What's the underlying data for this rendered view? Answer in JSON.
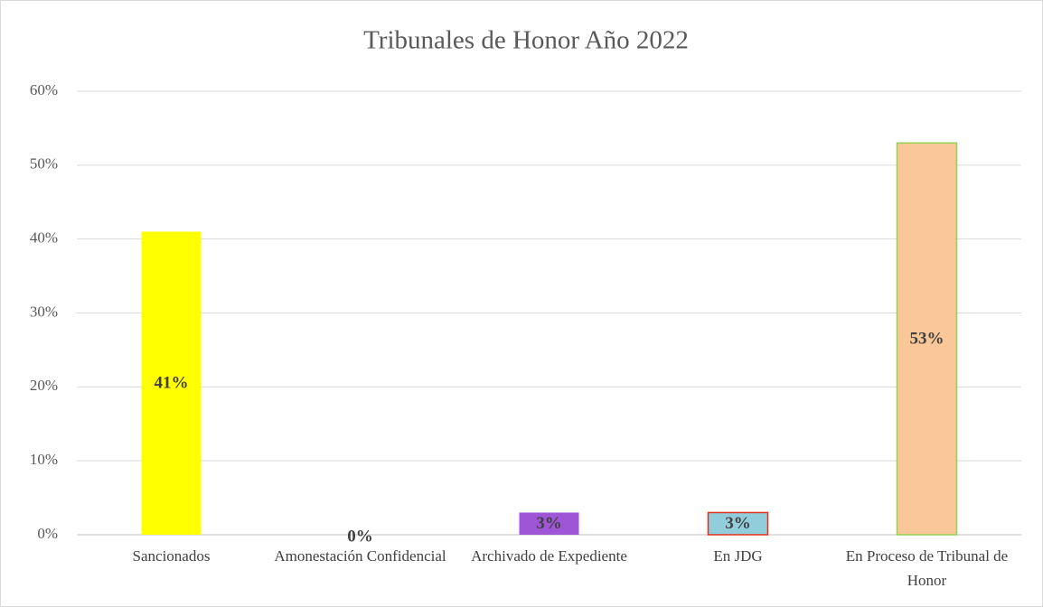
{
  "chart_data": {
    "type": "bar",
    "title": "Tribunales de Honor Año 2022",
    "categories": [
      "Sancionados",
      "Amonestación Confidencial",
      "Archivado de Expediente",
      "En JDG",
      "En Proceso de Tribunal de Honor"
    ],
    "values": [
      41,
      0,
      3,
      3,
      53
    ],
    "value_labels": [
      "41%",
      "0%",
      "3%",
      "3%",
      "53%"
    ],
    "colors": [
      "#ffff00",
      "#4472c4",
      "#9e55d6",
      "#92cddc",
      "#fac898"
    ],
    "edgecolors": [
      null,
      null,
      null,
      "#e0301e",
      "#92d050"
    ],
    "ylim": [
      0,
      60
    ],
    "yticks": [
      {
        "value": 0,
        "label": "0%"
      },
      {
        "value": 10,
        "label": "10%"
      },
      {
        "value": 20,
        "label": "20%"
      },
      {
        "value": 30,
        "label": "30%"
      },
      {
        "value": 40,
        "label": "40%"
      },
      {
        "value": 50,
        "label": "50%"
      },
      {
        "value": 60,
        "label": "60%"
      }
    ],
    "grid": true
  }
}
